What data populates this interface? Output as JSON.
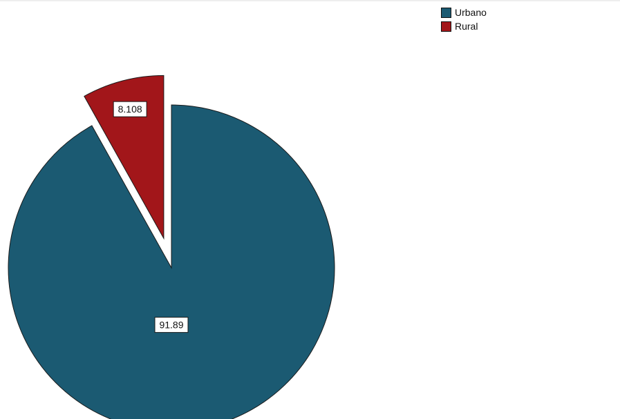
{
  "chart_data": {
    "type": "pie",
    "title": "",
    "categories": [
      "Urbano",
      "Rural"
    ],
    "values": [
      91.89,
      8.108
    ],
    "data_labels": [
      "91.89",
      "8.108"
    ],
    "colors": [
      "#1b5a72",
      "#a2161a"
    ],
    "exploded": [
      false,
      true
    ],
    "start_angle_deg": 0,
    "direction": "clockwise",
    "legend_position": "top-right"
  },
  "legend": {
    "items": [
      {
        "label": "Urbano",
        "color": "#1b5a72"
      },
      {
        "label": "Rural",
        "color": "#a2161a"
      }
    ]
  }
}
